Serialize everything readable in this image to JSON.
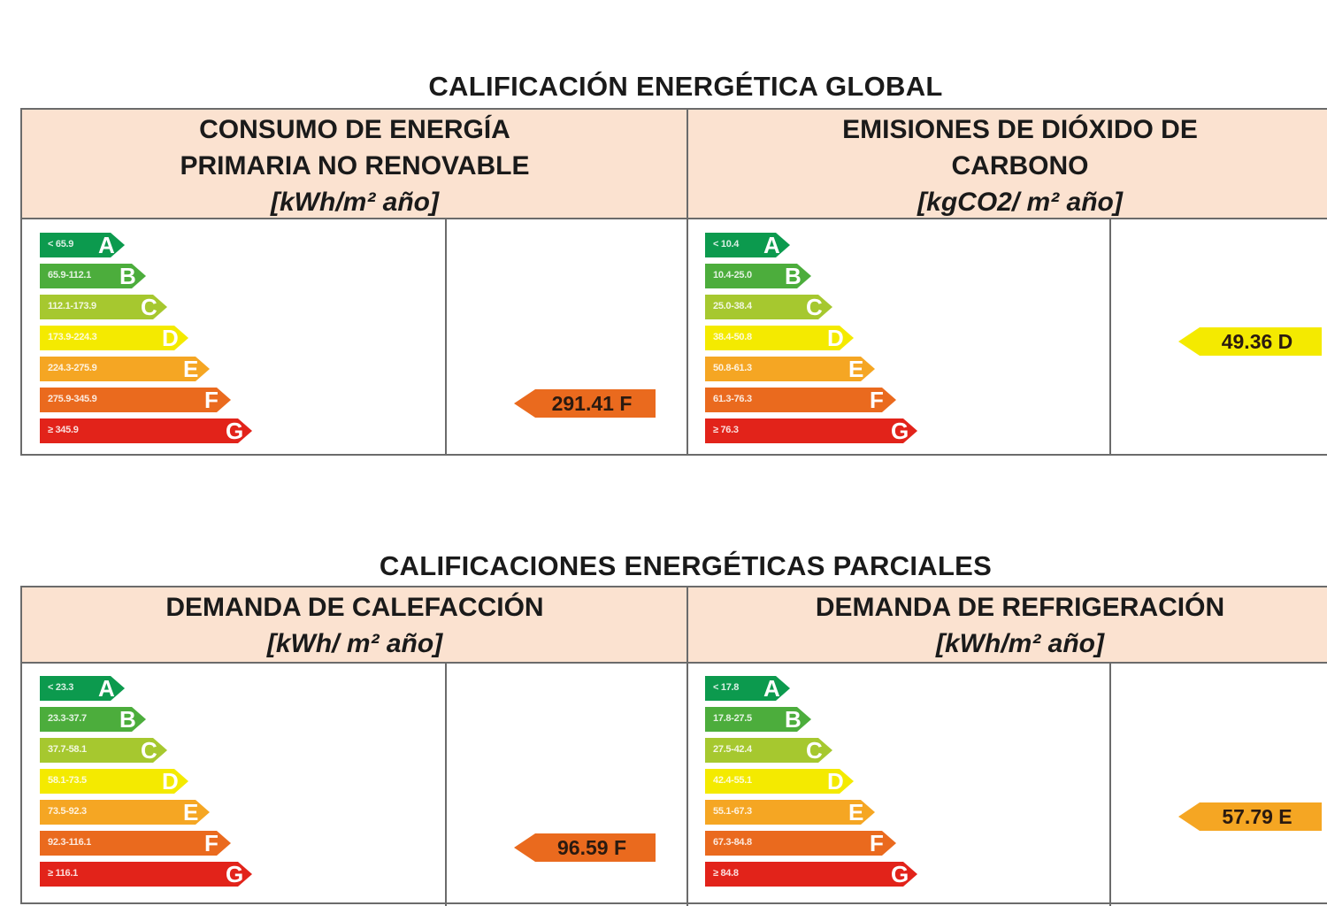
{
  "global_title": "CALIFICACIÓN ENERGÉTICA GLOBAL",
  "partial_title": "CALIFICACIONES ENERGÉTICAS PARCIALES",
  "colors": {
    "A": "#0c9a4e",
    "B": "#4cad3c",
    "C": "#a6c82f",
    "D": "#f4ea00",
    "E": "#f5a623",
    "F": "#ea6a1e",
    "G": "#e2231a",
    "header_bg": "#fbe2d0"
  },
  "panels": {
    "consumo": {
      "title_lines": [
        "CONSUMO DE ENERGÍA",
        "PRIMARIA NO RENOVABLE"
      ],
      "unit": "[kWh/m² año]",
      "scale": [
        {
          "letter": "A",
          "range": "< 65.9"
        },
        {
          "letter": "B",
          "range": "65.9-112.1"
        },
        {
          "letter": "C",
          "range": "112.1-173.9"
        },
        {
          "letter": "D",
          "range": "173.9-224.3"
        },
        {
          "letter": "E",
          "range": "224.3-275.9"
        },
        {
          "letter": "F",
          "range": "275.9-345.9"
        },
        {
          "letter": "G",
          "range": "≥ 345.9"
        }
      ],
      "value": "291.41 F",
      "rating": "F"
    },
    "emisiones": {
      "title_lines": [
        "EMISIONES DE DIÓXIDO DE",
        "CARBONO"
      ],
      "unit": "[kgCO2/ m² año]",
      "scale": [
        {
          "letter": "A",
          "range": "< 10.4"
        },
        {
          "letter": "B",
          "range": "10.4-25.0"
        },
        {
          "letter": "C",
          "range": "25.0-38.4"
        },
        {
          "letter": "D",
          "range": "38.4-50.8"
        },
        {
          "letter": "E",
          "range": "50.8-61.3"
        },
        {
          "letter": "F",
          "range": "61.3-76.3"
        },
        {
          "letter": "G",
          "range": "≥ 76.3"
        }
      ],
      "value": "49.36 D",
      "rating": "D"
    },
    "calefaccion": {
      "title_lines": [
        "DEMANDA DE CALEFACCIÓN"
      ],
      "unit": "[kWh/ m² año]",
      "scale": [
        {
          "letter": "A",
          "range": "< 23.3"
        },
        {
          "letter": "B",
          "range": "23.3-37.7"
        },
        {
          "letter": "C",
          "range": "37.7-58.1"
        },
        {
          "letter": "D",
          "range": "58.1-73.5"
        },
        {
          "letter": "E",
          "range": "73.5-92.3"
        },
        {
          "letter": "F",
          "range": "92.3-116.1"
        },
        {
          "letter": "G",
          "range": "≥ 116.1"
        }
      ],
      "value": "96.59 F",
      "rating": "F"
    },
    "refrigeracion": {
      "title_lines": [
        "DEMANDA DE REFRIGERACIÓN"
      ],
      "unit": "[kWh/m² año]",
      "scale": [
        {
          "letter": "A",
          "range": "< 17.8"
        },
        {
          "letter": "B",
          "range": "17.8-27.5"
        },
        {
          "letter": "C",
          "range": "27.5-42.4"
        },
        {
          "letter": "D",
          "range": "42.4-55.1"
        },
        {
          "letter": "E",
          "range": "55.1-67.3"
        },
        {
          "letter": "F",
          "range": "67.3-84.8"
        },
        {
          "letter": "G",
          "range": "≥ 84.8"
        }
      ],
      "value": "57.79 E",
      "rating": "E"
    }
  }
}
